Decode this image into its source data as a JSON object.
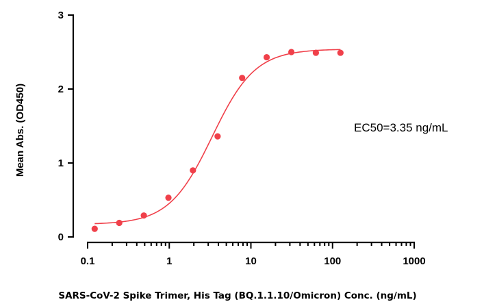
{
  "chart_data": {
    "type": "scatter",
    "title": "",
    "xlabel": "SARS-CoV-2 Spike Trimer, His Tag (BQ.1.1.10/Omicron) Conc. (ng/mL)",
    "ylabel": "Mean Abs. (OD450)",
    "x_scale": "log",
    "xlim": [
      0.1,
      1000
    ],
    "ylim": [
      0,
      3
    ],
    "x_ticks": [
      0.1,
      1,
      10,
      100,
      1000
    ],
    "x_tick_labels": [
      "0.1",
      "1",
      "10",
      "100",
      "1000"
    ],
    "y_ticks": [
      0,
      1,
      2,
      3
    ],
    "y_tick_labels": [
      "0",
      "1",
      "2",
      "3"
    ],
    "grid": false,
    "series": [
      {
        "x": [
          0.122,
          0.244,
          0.488,
          0.977,
          1.95,
          3.91,
          7.81,
          15.6,
          31.3,
          62.5,
          125
        ],
        "y": [
          0.11,
          0.19,
          0.29,
          0.53,
          0.9,
          1.36,
          2.15,
          2.43,
          2.5,
          2.49,
          2.49
        ],
        "color": "#f0404a"
      }
    ],
    "fit": {
      "model": "4PL",
      "bottom": 0.17,
      "top": 2.54,
      "ec50": 3.35,
      "hill": 1.65,
      "color": "#f0404a"
    },
    "annotations": [
      {
        "text": "EC50=3.35 ng/mL"
      }
    ]
  }
}
